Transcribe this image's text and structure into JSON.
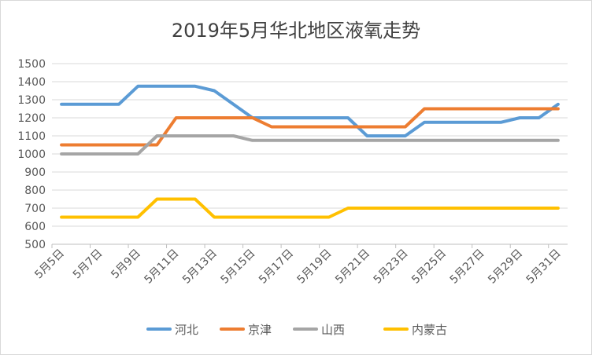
{
  "chart_data": {
    "type": "line",
    "title": "2019年5月华北地区液氧走势",
    "xlabel": "",
    "ylabel": "",
    "ylim": [
      500,
      1500
    ],
    "yticks": [
      500,
      600,
      700,
      800,
      900,
      1000,
      1100,
      1200,
      1300,
      1400,
      1500
    ],
    "grid": true,
    "legend_position": "bottom",
    "x": [
      "5月5日",
      "5月6日",
      "5月7日",
      "5月8日",
      "5月9日",
      "5月10日",
      "5月11日",
      "5月12日",
      "5月13日",
      "5月14日",
      "5月15日",
      "5月16日",
      "5月17日",
      "5月18日",
      "5月19日",
      "5月20日",
      "5月21日",
      "5月22日",
      "5月23日",
      "5月24日",
      "5月25日",
      "5月26日",
      "5月27日",
      "5月28日",
      "5月29日",
      "5月30日",
      "5月31日"
    ],
    "xtick_labels": [
      "5月5日",
      "5月7日",
      "5月9日",
      "5月11日",
      "5月13日",
      "5月15日",
      "5月17日",
      "5月19日",
      "5月21日",
      "5月23日",
      "5月25日",
      "5月27日",
      "5月29日",
      "5月31日"
    ],
    "series": [
      {
        "name": "河北",
        "color": "#5b9bd5",
        "values": [
          1275,
          1275,
          1275,
          1275,
          1375,
          1375,
          1375,
          1375,
          1350,
          1275,
          1200,
          1200,
          1200,
          1200,
          1200,
          1200,
          1100,
          1100,
          1100,
          1175,
          1175,
          1175,
          1175,
          1175,
          1200,
          1200,
          1275
        ]
      },
      {
        "name": "京津",
        "color": "#ed7d31",
        "values": [
          1050,
          1050,
          1050,
          1050,
          1050,
          1050,
          1200,
          1200,
          1200,
          1200,
          1200,
          1150,
          1150,
          1150,
          1150,
          1150,
          1150,
          1150,
          1150,
          1250,
          1250,
          1250,
          1250,
          1250,
          1250,
          1250,
          1250
        ]
      },
      {
        "name": "山西",
        "color": "#a5a5a5",
        "values": [
          1000,
          1000,
          1000,
          1000,
          1000,
          1100,
          1100,
          1100,
          1100,
          1100,
          1075,
          1075,
          1075,
          1075,
          1075,
          1075,
          1075,
          1075,
          1075,
          1075,
          1075,
          1075,
          1075,
          1075,
          1075,
          1075,
          1075
        ]
      },
      {
        "name": "内蒙古",
        "color": "#ffc000",
        "values": [
          650,
          650,
          650,
          650,
          650,
          750,
          750,
          750,
          650,
          650,
          650,
          650,
          650,
          650,
          650,
          700,
          700,
          700,
          700,
          700,
          700,
          700,
          700,
          700,
          700,
          700,
          700
        ]
      }
    ]
  }
}
